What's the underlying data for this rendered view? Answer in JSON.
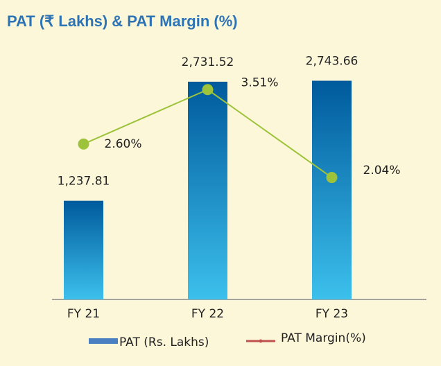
{
  "chart_data": {
    "type": "bar",
    "title": "PAT (₹ Lakhs) & PAT Margin (%)",
    "categories": [
      "FY 21",
      "FY 22",
      "FY 23"
    ],
    "ylim": [
      0,
      3000
    ],
    "y2lim": [
      0,
      4
    ],
    "series": [
      {
        "name": "PAT (Rs. Lakhs)",
        "type": "bar",
        "color": "#4a7fc1",
        "values": [
          1237.81,
          2731.52,
          2743.66
        ],
        "value_labels": [
          "1,237.81",
          "2,731.52",
          "2,743.66"
        ]
      },
      {
        "name": "PAT Margin(%)",
        "type": "line",
        "axis": "y2",
        "color": "#9dc33b",
        "legend_color": "#c0504d",
        "values": [
          2.6,
          3.51,
          2.04
        ],
        "value_labels": [
          "2.60%",
          "3.51%",
          "2.04%"
        ]
      }
    ]
  }
}
